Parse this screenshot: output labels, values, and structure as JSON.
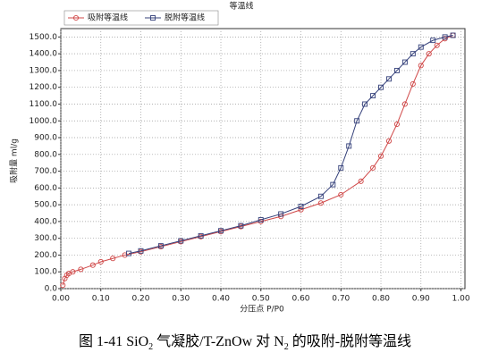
{
  "chart_data": {
    "type": "line",
    "title": "等温线",
    "xlabel": "分压点 P/P0",
    "ylabel": "吸附量 ml/g",
    "xlim": [
      0,
      1.01
    ],
    "ylim": [
      0,
      1550
    ],
    "xticks": [
      {
        "value": 0,
        "label": "0.00"
      },
      {
        "value": 0.1,
        "label": "0.10"
      },
      {
        "value": 0.2,
        "label": "0.20"
      },
      {
        "value": 0.3,
        "label": "0.30"
      },
      {
        "value": 0.4,
        "label": "0.40"
      },
      {
        "value": 0.5,
        "label": "0.50"
      },
      {
        "value": 0.6,
        "label": "0.60"
      },
      {
        "value": 0.7,
        "label": "0.70"
      },
      {
        "value": 0.8,
        "label": "0.80"
      },
      {
        "value": 0.9,
        "label": "0.90"
      },
      {
        "value": 1,
        "label": "1.00"
      }
    ],
    "yticks": [
      {
        "value": 0,
        "label": "0.0"
      },
      {
        "value": 100,
        "label": "100.0"
      },
      {
        "value": 200,
        "label": "200.0"
      },
      {
        "value": 300,
        "label": "300.0"
      },
      {
        "value": 400,
        "label": "400.0"
      },
      {
        "value": 500,
        "label": "500.0"
      },
      {
        "value": 600,
        "label": "600.0"
      },
      {
        "value": 700,
        "label": "700.0"
      },
      {
        "value": 800,
        "label": "800.0"
      },
      {
        "value": 900,
        "label": "900.0"
      },
      {
        "value": 1000,
        "label": "1000.0"
      },
      {
        "value": 1100,
        "label": "1100.0"
      },
      {
        "value": 1200,
        "label": "1200.0"
      },
      {
        "value": 1300,
        "label": "1300.0"
      },
      {
        "value": 1400,
        "label": "1400.0"
      },
      {
        "value": 1500,
        "label": "1500.0"
      }
    ],
    "grid": true,
    "legend": "upper left",
    "series": [
      {
        "name": "吸附等温线",
        "color": "#d04848",
        "marker": "circle",
        "x": [
          0.005,
          0.01,
          0.015,
          0.02,
          0.03,
          0.05,
          0.08,
          0.1,
          0.13,
          0.16,
          0.2,
          0.25,
          0.3,
          0.35,
          0.4,
          0.45,
          0.5,
          0.55,
          0.6,
          0.65,
          0.7,
          0.75,
          0.78,
          0.8,
          0.82,
          0.84,
          0.86,
          0.88,
          0.9,
          0.92,
          0.94,
          0.96,
          0.98
        ],
        "values": [
          20,
          60,
          80,
          90,
          100,
          115,
          140,
          160,
          180,
          200,
          220,
          250,
          280,
          310,
          340,
          370,
          400,
          430,
          470,
          510,
          560,
          640,
          720,
          790,
          880,
          980,
          1100,
          1220,
          1330,
          1400,
          1450,
          1490,
          1510
        ]
      },
      {
        "name": "脱附等温线",
        "color": "#34407a",
        "marker": "square",
        "x": [
          0.17,
          0.2,
          0.25,
          0.3,
          0.35,
          0.4,
          0.45,
          0.5,
          0.55,
          0.6,
          0.65,
          0.68,
          0.7,
          0.72,
          0.74,
          0.76,
          0.78,
          0.8,
          0.82,
          0.84,
          0.86,
          0.88,
          0.9,
          0.93,
          0.96,
          0.98
        ],
        "values": [
          210,
          225,
          255,
          285,
          315,
          345,
          375,
          410,
          445,
          490,
          550,
          620,
          720,
          850,
          1000,
          1100,
          1150,
          1200,
          1250,
          1300,
          1350,
          1400,
          1440,
          1480,
          1500,
          1510
        ]
      }
    ]
  },
  "caption": [
    "图 1-41 SiO",
    "2",
    " 气凝胶/T-ZnOw 对 N",
    "2",
    " 的吸附-脱附等温线"
  ]
}
